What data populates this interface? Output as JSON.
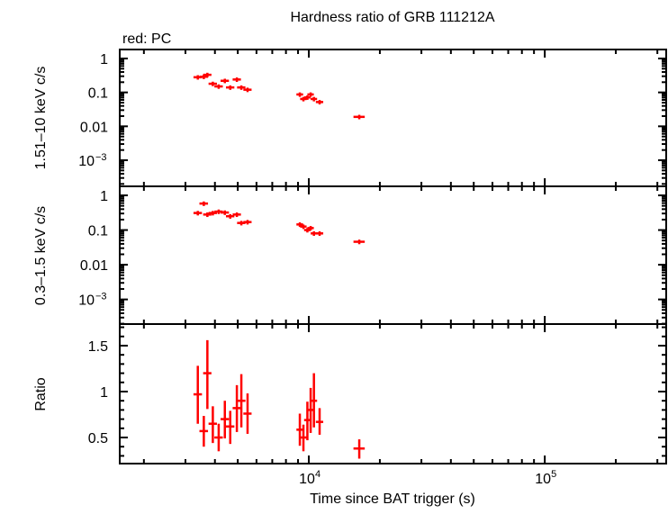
{
  "chart_data": {
    "title": "Hardness ratio of GRB 111212A",
    "legend_note": "red: PC",
    "xlabel": "Time since BAT trigger (s)",
    "x_scale": "log",
    "xlim": [
      1580,
      327000
    ],
    "x_tick_labels": [
      {
        "value": 10000,
        "base": "10",
        "exp": "4"
      },
      {
        "value": 100000,
        "base": "10",
        "exp": "5"
      }
    ],
    "series_color": "#ff0000",
    "x": [
      3385,
      3589,
      3716,
      3919,
      4150,
      4406,
      4645,
      4955,
      5176,
      5500,
      9160,
      9487,
      9860,
      10180,
      10510,
      11110,
      16360
    ],
    "xerr": [
      140,
      150,
      150,
      160,
      170,
      180,
      190,
      200,
      210,
      220,
      300,
      300,
      310,
      320,
      330,
      400,
      900
    ],
    "panels": [
      {
        "type": "scatter",
        "ylabel": "1.51–10 keV c/s",
        "y_scale": "log",
        "ylim": [
          0.00017,
          1.84
        ],
        "y_ticks": [
          {
            "value": 1,
            "label": "1"
          },
          {
            "value": 0.1,
            "label": "0.1"
          },
          {
            "value": 0.01,
            "label": "0.01"
          },
          {
            "value": 0.001,
            "label": "10",
            "exp": "−3"
          }
        ],
        "y": [
          0.28,
          0.29,
          0.33,
          0.18,
          0.15,
          0.22,
          0.14,
          0.24,
          0.14,
          0.12,
          0.087,
          0.064,
          0.071,
          0.087,
          0.064,
          0.052,
          0.019
        ],
        "yerr_frac": 0.15
      },
      {
        "type": "scatter",
        "ylabel": "0.3–1.5 keV c/s",
        "y_scale": "log",
        "ylim": [
          0.000195,
          1.82
        ],
        "y_ticks": [
          {
            "value": 1,
            "label": "1"
          },
          {
            "value": 0.1,
            "label": "0.1"
          },
          {
            "value": 0.01,
            "label": "0.01"
          },
          {
            "value": 0.001,
            "label": "10",
            "exp": "−3"
          }
        ],
        "y": [
          0.31,
          0.58,
          0.28,
          0.31,
          0.34,
          0.32,
          0.25,
          0.28,
          0.16,
          0.17,
          0.145,
          0.126,
          0.1,
          0.114,
          0.08,
          0.08,
          0.046
        ],
        "yerr_frac": 0.15
      },
      {
        "type": "scatter",
        "ylabel": "Ratio",
        "y_scale": "linear",
        "ylim": [
          0.216,
          1.735
        ],
        "y_ticks": [
          {
            "value": 1.5,
            "label": "1.5"
          },
          {
            "value": 1,
            "label": "1"
          },
          {
            "value": 0.5,
            "label": "0.5"
          }
        ],
        "y": [
          0.97,
          0.57,
          1.2,
          0.65,
          0.5,
          0.7,
          0.62,
          0.82,
          0.9,
          0.76,
          0.585,
          0.5,
          0.69,
          0.8,
          0.9,
          0.67,
          0.38
        ],
        "y_hi": [
          1.28,
          0.735,
          1.56,
          0.84,
          0.65,
          0.9,
          0.79,
          1.07,
          1.19,
          0.98,
          0.76,
          0.64,
          0.89,
          1.04,
          1.2,
          0.82,
          0.48
        ],
        "y_lo": [
          0.65,
          0.4,
          0.81,
          0.44,
          0.35,
          0.49,
          0.43,
          0.56,
          0.61,
          0.54,
          0.41,
          0.35,
          0.47,
          0.55,
          0.61,
          0.53,
          0.27
        ]
      }
    ]
  }
}
